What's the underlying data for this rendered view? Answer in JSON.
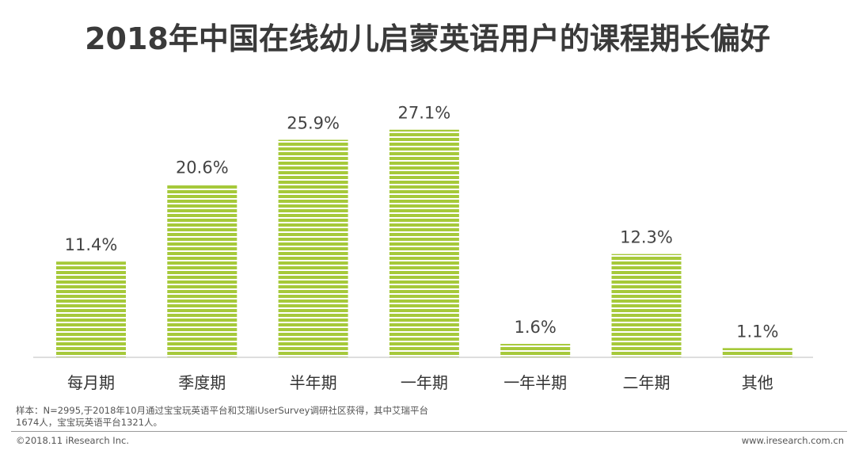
{
  "chart_data": {
    "type": "bar",
    "title": "2018年中国在线幼儿启蒙英语用户的课程期长偏好",
    "categories": [
      "每月期",
      "季度期",
      "半年期",
      "一年期",
      "一年半期",
      "二年期",
      "其他"
    ],
    "values": [
      11.4,
      20.6,
      25.9,
      27.1,
      1.6,
      12.3,
      1.1
    ],
    "value_labels": [
      "11.4%",
      "20.6%",
      "25.9%",
      "27.1%",
      "1.6%",
      "12.3%",
      "1.1%"
    ],
    "unit": "%",
    "xlabel": "",
    "ylabel": "",
    "ylim": [
      0,
      30
    ],
    "grid": false,
    "legend": "none",
    "bar_color": "#a6c93a"
  },
  "footnote": "样本：N=2995,于2018年10月通过宝宝玩英语平台和艾瑞iUserSurvey调研社区获得，其中艾瑞平台1674人，宝宝玩英语平台1321人。",
  "copyright": "©2018.11 iResearch Inc.",
  "website": "www.iresearch.com.cn"
}
